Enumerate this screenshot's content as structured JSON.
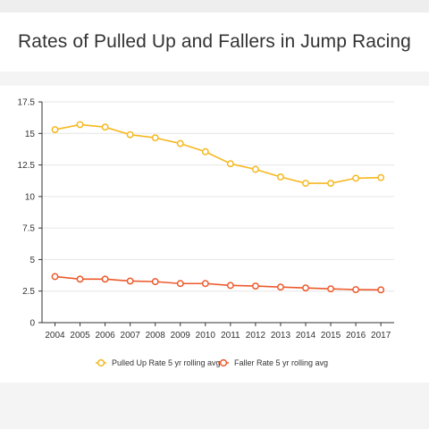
{
  "title": "Rates of Pulled Up and Fallers in Jump Racing",
  "colors": {
    "pulled_up": "#f5b820",
    "faller": "#ec5a2c",
    "grid": "#e6e6e6",
    "axis": "#333333"
  },
  "chart_data": {
    "type": "line",
    "title": "Rates of Pulled Up and Fallers in Jump Racing",
    "xlabel": "",
    "ylabel": "",
    "categories": [
      "2004",
      "2005",
      "2006",
      "2007",
      "2008",
      "2009",
      "2010",
      "2011",
      "2012",
      "2013",
      "2014",
      "2015",
      "2016",
      "2017"
    ],
    "ylim": [
      0,
      17.5
    ],
    "yticks": [
      "0",
      "2.5",
      "5",
      "7.5",
      "10",
      "12.5",
      "15",
      "17.5"
    ],
    "grid": true,
    "legend_position": "bottom",
    "series": [
      {
        "name": "Pulled Up Rate 5 yr rolling avg",
        "color": "#f5b820",
        "values": [
          15.3,
          15.7,
          15.5,
          14.9,
          14.65,
          14.2,
          13.55,
          12.6,
          12.15,
          11.55,
          11.05,
          11.05,
          11.45,
          11.5
        ]
      },
      {
        "name": "Faller Rate 5 yr rolling avg",
        "color": "#ec5a2c",
        "values": [
          3.65,
          3.45,
          3.45,
          3.3,
          3.25,
          3.1,
          3.1,
          2.95,
          2.9,
          2.82,
          2.75,
          2.68,
          2.62,
          2.6
        ]
      }
    ]
  }
}
